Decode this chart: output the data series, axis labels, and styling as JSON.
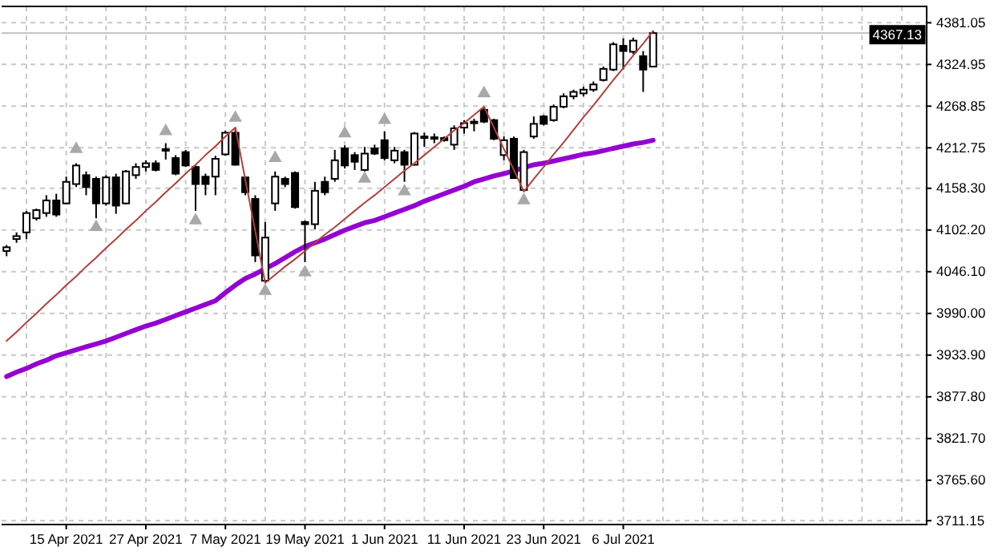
{
  "chart_data": {
    "type": "candlestick",
    "categories": [
      null,
      null,
      null,
      null,
      null,
      null,
      "15 Apr 2021",
      null,
      null,
      null,
      null,
      null,
      null,
      null,
      "27 Apr 2021",
      null,
      null,
      null,
      null,
      null,
      null,
      null,
      "7 May 2021",
      null,
      null,
      null,
      null,
      null,
      null,
      null,
      "19 May 2021",
      null,
      null,
      null,
      null,
      null,
      null,
      null,
      "1 Jun 2021",
      null,
      null,
      null,
      null,
      null,
      null,
      null,
      "11 Jun 2021",
      null,
      null,
      null,
      null,
      null,
      null,
      null,
      "23 Jun 2021",
      null,
      null,
      null,
      null,
      null,
      null,
      null,
      "6 Jul 2021",
      null,
      null,
      null,
      null,
      null,
      null,
      null,
      null,
      null,
      null,
      null,
      null,
      null,
      null,
      null,
      null,
      null,
      null,
      null,
      null,
      null,
      null,
      null,
      null,
      null,
      null,
      null,
      null,
      null,
      null
    ],
    "ohlc": [
      [
        4074,
        4082,
        4067,
        4079
      ],
      [
        4090,
        4099,
        4085,
        4094
      ],
      [
        4099,
        4128,
        4090,
        4125
      ],
      [
        4118,
        4131,
        4115,
        4129
      ],
      [
        4125,
        4149,
        4120,
        4142
      ],
      [
        4142,
        4151,
        4120,
        4123
      ],
      [
        4138,
        4174,
        4137,
        4167
      ],
      [
        4164,
        4192,
        4160,
        4189
      ],
      [
        4176,
        4181,
        4149,
        4160
      ],
      [
        4171,
        4174,
        4118,
        4138
      ],
      [
        4138,
        4176,
        4135,
        4173
      ],
      [
        4173,
        4178,
        4124,
        4135
      ],
      [
        4138,
        4183,
        4137,
        4181
      ],
      [
        4176,
        4192,
        4171,
        4187
      ],
      [
        4187,
        4196,
        4181,
        4192
      ],
      [
        4192,
        4196,
        4181,
        4183
      ],
      [
        4210,
        4219,
        4197,
        4211
      ],
      [
        4199,
        4203,
        4176,
        4178
      ],
      [
        4207,
        4210,
        4187,
        4189
      ],
      [
        4187,
        4189,
        4128,
        4164
      ],
      [
        4174,
        4178,
        4149,
        4164
      ],
      [
        4174,
        4202,
        4149,
        4198
      ],
      [
        4204,
        4236,
        4202,
        4233
      ],
      [
        4233,
        4240,
        4189,
        4190
      ],
      [
        4173,
        4174,
        4149,
        4153
      ],
      [
        4144,
        4149,
        4059,
        4068
      ],
      [
        4034,
        4113,
        4031,
        4092
      ],
      [
        4138,
        4181,
        4128,
        4174
      ],
      [
        4171,
        4174,
        4160,
        4164
      ],
      [
        4179,
        4181,
        4131,
        4133
      ],
      [
        4113,
        4115,
        4059,
        4110
      ],
      [
        4110,
        4167,
        4103,
        4155
      ],
      [
        4167,
        4174,
        4149,
        4153
      ],
      [
        4171,
        4210,
        4167,
        4196
      ],
      [
        4212,
        4216,
        4185,
        4189
      ],
      [
        4203,
        4207,
        4183,
        4194
      ],
      [
        4183,
        4214,
        4181,
        4205
      ],
      [
        4212,
        4217,
        4203,
        4205
      ],
      [
        4223,
        4235,
        4196,
        4199
      ],
      [
        4196,
        4214,
        4192,
        4209
      ],
      [
        4207,
        4210,
        4167,
        4190
      ],
      [
        4190,
        4234,
        4189,
        4232
      ],
      [
        4226,
        4233,
        4214,
        4228
      ],
      [
        4226,
        4232,
        4219,
        4227
      ],
      [
        4226,
        4228,
        4221,
        4223
      ],
      [
        4217,
        4243,
        4210,
        4239
      ],
      [
        4240,
        4250,
        4232,
        4246
      ],
      [
        4248,
        4252,
        4235,
        4248
      ],
      [
        4264,
        4268,
        4246,
        4248
      ],
      [
        4250,
        4252,
        4223,
        4225
      ],
      [
        4203,
        4228,
        4196,
        4223
      ],
      [
        4225,
        4228,
        4171,
        4172
      ],
      [
        4156,
        4210,
        4154,
        4207
      ],
      [
        4228,
        4255,
        4225,
        4245
      ],
      [
        4255,
        4257,
        4243,
        4245
      ],
      [
        4250,
        4271,
        4248,
        4268
      ],
      [
        4268,
        4286,
        4266,
        4282
      ],
      [
        4282,
        4291,
        4278,
        4288
      ],
      [
        4286,
        4295,
        4282,
        4291
      ],
      [
        4291,
        4302,
        4288,
        4298
      ],
      [
        4304,
        4322,
        4302,
        4319
      ],
      [
        4318,
        4355,
        4316,
        4352
      ],
      [
        4350,
        4360,
        4318,
        4343
      ],
      [
        4342,
        4361,
        4339,
        4357
      ],
      [
        4336,
        4343,
        4288,
        4318
      ],
      [
        4322,
        4370,
        4322,
        4367.13
      ],
      null,
      null,
      null,
      null,
      null,
      null,
      null,
      null,
      null,
      null,
      null,
      null,
      null,
      null,
      null,
      null,
      null,
      null,
      null,
      null,
      null,
      null,
      null,
      null,
      null,
      null,
      null
    ],
    "series": [
      {
        "type": "line",
        "color": "#9400d3",
        "values": [
          3905,
          3911,
          3916,
          3922,
          3927,
          3933,
          3937,
          3941,
          3945,
          3949,
          3953,
          3958,
          3963,
          3968,
          3973,
          3977,
          3982,
          3987,
          3992,
          3997,
          4002,
          4007,
          4018,
          4028,
          4037,
          4043,
          4050,
          4057,
          4065,
          4073,
          4080,
          4085,
          4090,
          4096,
          4102,
          4107,
          4112,
          4115,
          4120,
          4125,
          4130,
          4135,
          4141,
          4146,
          4151,
          4156,
          4161,
          4167,
          4171,
          4175,
          4178,
          4182,
          4186,
          4190,
          4192,
          4195,
          4198,
          4201,
          4204,
          4206,
          4209,
          4212,
          4215,
          4218,
          4220,
          4223,
          null,
          null,
          null,
          null,
          null,
          null,
          null,
          null,
          null,
          null,
          null,
          null,
          null,
          null,
          null,
          null,
          null,
          null,
          null,
          null,
          null,
          null,
          null,
          null,
          null,
          null,
          null
        ]
      },
      {
        "type": "line",
        "color": "#b0403c",
        "values": [
          3953,
          3965,
          3978,
          3990,
          4003,
          4015,
          4028,
          4040,
          4053,
          4065,
          4078,
          4090,
          4103,
          4115,
          4128,
          4140,
          4153,
          4165,
          4178,
          4190,
          4203,
          4215,
          4228,
          4240,
          4170,
          4101,
          4031,
          4042,
          4053,
          4063,
          4074,
          4085,
          4096,
          4106,
          4117,
          4128,
          4139,
          4149,
          4160,
          4171,
          4182,
          4192,
          4203,
          4214,
          4225,
          4236,
          4246,
          4257,
          4268,
          4240,
          4211,
          4183,
          4154,
          4171,
          4187,
          4204,
          4220,
          4237,
          4254,
          4270,
          4287,
          4304,
          4320,
          4337,
          4353,
          4370,
          null,
          null,
          null,
          null,
          null,
          null,
          null,
          null,
          null,
          null,
          null,
          null,
          null,
          null,
          null,
          null,
          null,
          null,
          null,
          null,
          null,
          null,
          null,
          null,
          null,
          null,
          null
        ]
      },
      {
        "type": "scatter",
        "color": "#a8a8a8",
        "marker": "triangle",
        "values": [
          null,
          null,
          null,
          null,
          null,
          null,
          null,
          4211,
          null,
          null,
          null,
          null,
          null,
          null,
          null,
          null,
          4235,
          null,
          null,
          null,
          null,
          null,
          null,
          4253,
          null,
          null,
          null,
          4199,
          null,
          null,
          null,
          null,
          null,
          null,
          4232,
          null,
          null,
          null,
          4250,
          null,
          null,
          null,
          null,
          null,
          null,
          null,
          null,
          null,
          4286,
          null,
          null,
          null,
          null,
          null,
          null,
          null,
          null,
          null,
          null,
          null,
          null,
          null,
          null,
          null,
          null,
          null,
          null,
          null,
          null,
          null,
          null,
          null,
          null,
          null,
          null,
          null,
          null,
          null,
          null,
          null,
          null,
          null,
          null,
          null,
          null,
          null,
          null,
          null,
          null,
          null,
          null,
          null,
          null
        ]
      },
      {
        "type": "scatter",
        "color": "#a8a8a8",
        "marker": "triangle",
        "values": [
          null,
          null,
          null,
          null,
          null,
          null,
          null,
          null,
          null,
          4106,
          null,
          null,
          null,
          null,
          null,
          null,
          null,
          null,
          null,
          4115,
          null,
          null,
          null,
          null,
          null,
          null,
          4020,
          null,
          null,
          null,
          4045,
          null,
          null,
          null,
          null,
          null,
          4171,
          null,
          null,
          null,
          4154,
          null,
          null,
          null,
          null,
          null,
          null,
          null,
          null,
          null,
          null,
          null,
          4142,
          null,
          null,
          null,
          null,
          null,
          null,
          null,
          null,
          null,
          null,
          null,
          null,
          null,
          null,
          null,
          null,
          null,
          null,
          null,
          null,
          null,
          null,
          null,
          null,
          null,
          null,
          null,
          null,
          null,
          null,
          null,
          null,
          null,
          null,
          null,
          null,
          null,
          null,
          null,
          null
        ]
      }
    ],
    "ylim": [
      3706,
      4403
    ],
    "yticks": [
      4381.05,
      4324.95,
      4268.85,
      4212.75,
      {
        "value": 4158.3,
        "label": "4158.30"
      },
      {
        "value": 4102.2,
        "label": "4102.20"
      },
      {
        "value": 4046.1,
        "label": "4046.10"
      },
      {
        "value": 3990,
        "label": "3990.00"
      },
      {
        "value": 3933.9,
        "label": "3933.90"
      },
      {
        "value": 3877.8,
        "label": "3877.80"
      },
      {
        "value": 3821.7,
        "label": "3821.70"
      },
      {
        "value": 3765.6,
        "label": "3765.60"
      },
      3711.15
    ],
    "ref_lines": [
      {
        "axis": "y",
        "value": 4367.13,
        "label": "4367.13",
        "color": "#c0c0c0"
      }
    ],
    "grid": true
  }
}
